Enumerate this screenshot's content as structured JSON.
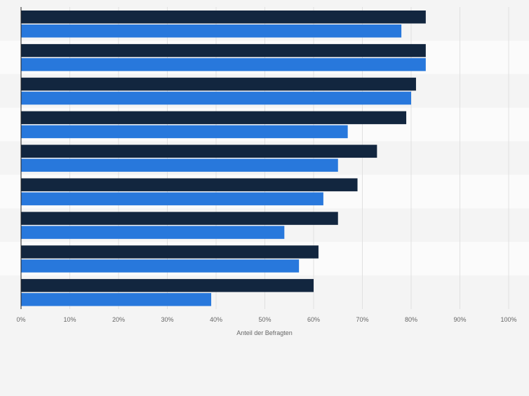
{
  "chart_data": {
    "type": "bar",
    "orientation": "horizontal",
    "title": "",
    "xlabel": "Anteil der Befragten",
    "ylabel": "",
    "xlim": [
      0,
      100
    ],
    "x_ticks": [
      "0%",
      "10%",
      "20%",
      "30%",
      "40%",
      "50%",
      "60%",
      "70%",
      "80%",
      "90%",
      "100%"
    ],
    "grid": true,
    "legend": "none",
    "categories": [
      "",
      "",
      "",
      "",
      "",
      "",
      "",
      "",
      ""
    ],
    "series": [
      {
        "color": "#12263f",
        "values": [
          83,
          83,
          81,
          79,
          73,
          69,
          65,
          61,
          60
        ]
      },
      {
        "color": "#2878dc",
        "values": [
          78,
          83,
          80,
          67,
          65,
          62,
          54,
          57,
          39
        ]
      }
    ]
  }
}
